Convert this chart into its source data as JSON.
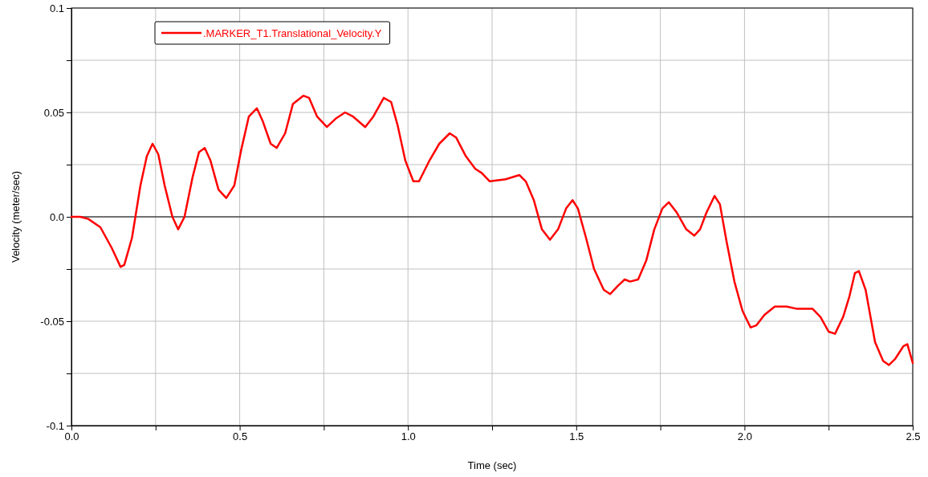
{
  "chart_data": {
    "type": "line",
    "xlabel": "Time (sec)",
    "ylabel": "Velocity (meter/sec)",
    "xlim": [
      0,
      2.5
    ],
    "ylim": [
      -0.1,
      0.1
    ],
    "xticks": [
      {
        "value": 0,
        "label": "0.0"
      },
      {
        "value": 0.25,
        "label": null
      },
      {
        "value": 0.5,
        "label": "0.5"
      },
      {
        "value": 0.75,
        "label": null
      },
      {
        "value": 1,
        "label": "1.0"
      },
      {
        "value": 1.25,
        "label": null
      },
      {
        "value": 1.5,
        "label": "1.5"
      },
      {
        "value": 1.75,
        "label": null
      },
      {
        "value": 2,
        "label": "2.0"
      },
      {
        "value": 2.25,
        "label": null
      },
      {
        "value": 2.5,
        "label": "2.5"
      }
    ],
    "yticks": [
      -0.1,
      {
        "value": -0.075,
        "label": null
      },
      -0.05,
      {
        "value": -0.025,
        "label": null
      },
      {
        "value": 0,
        "label": "0.0"
      },
      {
        "value": 0.025,
        "label": null
      },
      0.05,
      {
        "value": 0.075,
        "label": null
      },
      0.1
    ],
    "grid": true,
    "legend": "top left",
    "line_style": "solid",
    "ref_lines": [
      {
        "axis": "y",
        "value": 0,
        "color": "#000000"
      }
    ],
    "x": [
      0,
      0.026,
      0.05,
      0.086,
      0.12,
      0.146,
      0.157,
      0.18,
      0.205,
      0.224,
      0.241,
      0.258,
      0.277,
      0.3,
      0.317,
      0.336,
      0.36,
      0.379,
      0.396,
      0.413,
      0.437,
      0.46,
      0.484,
      0.503,
      0.527,
      0.551,
      0.568,
      0.592,
      0.61,
      0.635,
      0.658,
      0.689,
      0.706,
      0.73,
      0.759,
      0.785,
      0.813,
      0.837,
      0.873,
      0.897,
      0.928,
      0.95,
      0.969,
      0.992,
      1.016,
      1.033,
      1.064,
      1.093,
      1.124,
      1.143,
      1.172,
      1.2,
      1.219,
      1.243,
      1.29,
      1.331,
      1.35,
      1.374,
      1.398,
      1.422,
      1.446,
      1.47,
      1.489,
      1.505,
      1.529,
      1.553,
      1.582,
      1.601,
      1.624,
      1.644,
      1.66,
      1.684,
      1.708,
      1.732,
      1.756,
      1.775,
      1.799,
      1.827,
      1.851,
      1.868,
      1.887,
      1.911,
      1.927,
      1.947,
      1.97,
      1.994,
      2.018,
      2.035,
      2.059,
      2.09,
      2.125,
      2.154,
      2.202,
      2.226,
      2.25,
      2.269,
      2.293,
      2.312,
      2.328,
      2.34,
      2.36,
      2.388,
      2.412,
      2.429,
      2.448,
      2.472,
      2.484,
      2.5
    ],
    "series": [
      {
        "name": ".MARKER_T1.Translational_Velocity.Y",
        "color": "#ff0000",
        "values": [
          0,
          0,
          -0.001,
          -0.005,
          -0.015,
          -0.024,
          -0.023,
          -0.01,
          0.015,
          0.029,
          0.035,
          0.03,
          0.015,
          0,
          -0.006,
          0,
          0.019,
          0.031,
          0.033,
          0.027,
          0.013,
          0.009,
          0.015,
          0.031,
          0.048,
          0.052,
          0.046,
          0.035,
          0.033,
          0.04,
          0.054,
          0.058,
          0.057,
          0.048,
          0.043,
          0.047,
          0.05,
          0.048,
          0.043,
          0.048,
          0.057,
          0.055,
          0.044,
          0.027,
          0.017,
          0.017,
          0.027,
          0.035,
          0.04,
          0.038,
          0.029,
          0.023,
          0.021,
          0.017,
          0.018,
          0.02,
          0.017,
          0.008,
          -0.006,
          -0.011,
          -0.006,
          0.004,
          0.008,
          0.004,
          -0.01,
          -0.025,
          -0.035,
          -0.037,
          -0.033,
          -0.03,
          -0.031,
          -0.03,
          -0.021,
          -0.006,
          0.004,
          0.007,
          0.002,
          -0.006,
          -0.009,
          -0.006,
          0.002,
          0.01,
          0.006,
          -0.012,
          -0.031,
          -0.045,
          -0.053,
          -0.052,
          -0.047,
          -0.043,
          -0.043,
          -0.044,
          -0.044,
          -0.048,
          -0.055,
          -0.056,
          -0.048,
          -0.038,
          -0.027,
          -0.026,
          -0.035,
          -0.06,
          -0.069,
          -0.071,
          -0.068,
          -0.062,
          -0.061,
          -0.07
        ]
      }
    ]
  }
}
